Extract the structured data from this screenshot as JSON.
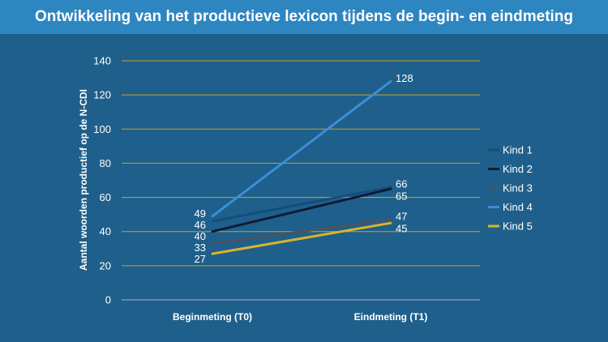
{
  "page": {
    "title": "Ontwikkeling van het productieve lexicon tijdens de begin- en eindmeting"
  },
  "colors": {
    "background": "#1f5f8b",
    "title_bar": "#2e86c1",
    "gridline": "#c9a227",
    "text": "#ffffff"
  },
  "chart_data": {
    "type": "line",
    "title": "Ontwikkeling van het productieve lexicon tijdens de begin- en eindmeting",
    "xlabel": "",
    "ylabel": "Aantal woorden productief op de N-CDI",
    "categories": [
      "Beginmeting (T0)",
      "Eindmeting (T1)"
    ],
    "ylim": [
      0,
      140
    ],
    "yticks": [
      0,
      20,
      40,
      60,
      80,
      100,
      120,
      140
    ],
    "grid": true,
    "legend_position": "right",
    "series": [
      {
        "name": "Kind 1",
        "values": [
          46,
          66
        ],
        "color": "#154e7a"
      },
      {
        "name": "Kind 2",
        "values": [
          40,
          65
        ],
        "color": "#0d1b33"
      },
      {
        "name": "Kind 3",
        "values": [
          33,
          47
        ],
        "color": "#4a5560"
      },
      {
        "name": "Kind 4",
        "values": [
          49,
          128
        ],
        "color": "#3a8fd6"
      },
      {
        "name": "Kind 5",
        "values": [
          27,
          45
        ],
        "color": "#d9b52c"
      }
    ]
  }
}
